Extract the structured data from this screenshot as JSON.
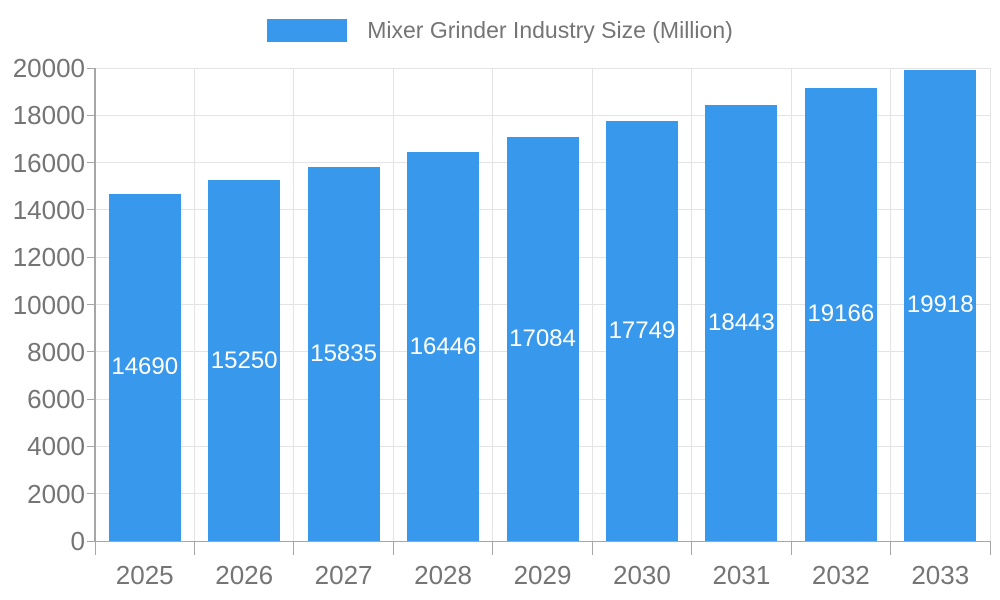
{
  "chart_data": {
    "type": "bar",
    "title": "Mixer Grinder Industry Size (Million)",
    "categories": [
      "2025",
      "2026",
      "2027",
      "2028",
      "2029",
      "2030",
      "2031",
      "2032",
      "2033"
    ],
    "values": [
      14690,
      15250,
      15835,
      16446,
      17084,
      17749,
      18443,
      19166,
      19918
    ],
    "xlabel": "",
    "ylabel": "",
    "ylim": [
      0,
      20000
    ],
    "y_ticks": [
      0,
      2000,
      4000,
      6000,
      8000,
      10000,
      12000,
      14000,
      16000,
      18000,
      20000
    ],
    "grid": true,
    "legend_position": "top-center",
    "bar_value_labels": "inside-center",
    "colors": {
      "bar": "#3899EC",
      "grid": "#E3E3E3",
      "axis": "#A6A6A6",
      "axis_text": "#757575",
      "bar_label_text": "#FFFFFF",
      "background": "#FFFFFF"
    }
  }
}
